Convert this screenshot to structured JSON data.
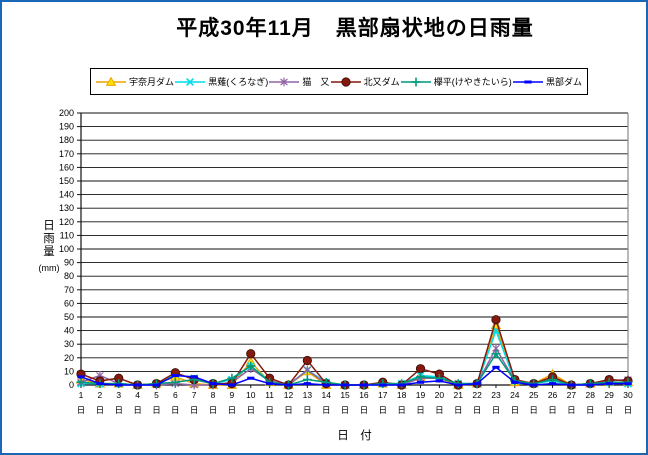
{
  "title": "平成30年11月　黒部扇状地の日雨量",
  "frame": {
    "border_color": "#1a68b5",
    "background": "#ffffff"
  },
  "chart_data": {
    "type": "line",
    "title": "平成30年11月　黒部扇状地の日雨量",
    "x": [
      1,
      2,
      3,
      4,
      5,
      6,
      7,
      8,
      9,
      10,
      11,
      12,
      13,
      14,
      15,
      16,
      17,
      18,
      19,
      20,
      21,
      22,
      23,
      24,
      25,
      26,
      27,
      28,
      29,
      30
    ],
    "x_tick_suffix": "日",
    "xlabel": "日　付",
    "ylabel": "日雨量(mm)",
    "ylabel_chars": [
      "日",
      "雨",
      "量"
    ],
    "ylabel_unit": "(mm)",
    "ylim": [
      0,
      200
    ],
    "ytick_step": 10,
    "grid": true,
    "gridline_color": "#111111",
    "right_border_color": "#888888",
    "legend_position": "top",
    "series": [
      {
        "key": "unazuki-dam",
        "name": "宇奈月ダム",
        "color": "#efa400",
        "marker_fill": "#ffe200",
        "marker": "triangle",
        "values": [
          4,
          1,
          1,
          0,
          1,
          6,
          1,
          0,
          0,
          17,
          2,
          0,
          10,
          0,
          0,
          0,
          1,
          0,
          6,
          5,
          0,
          1,
          44,
          2,
          1,
          8,
          0,
          1,
          2,
          2
        ]
      },
      {
        "key": "kuronagi",
        "name": "黒薙(くろなぎ)",
        "color": "#00dde8",
        "marker": "x",
        "values": [
          1,
          1,
          1,
          0,
          1,
          8,
          5,
          1,
          4,
          14,
          3,
          0,
          11,
          2,
          0,
          0,
          1,
          1,
          7,
          6,
          1,
          1,
          40,
          3,
          1,
          3,
          0,
          1,
          2,
          1
        ]
      },
      {
        "key": "nekomata",
        "name": "猫　又",
        "color": "#9065a5",
        "marker": "asterisk",
        "values": [
          2,
          7,
          1,
          0,
          0,
          1,
          0,
          0,
          2,
          12,
          3,
          0,
          11,
          1,
          0,
          0,
          1,
          0,
          5,
          5,
          1,
          1,
          27,
          3,
          1,
          5,
          0,
          1,
          3,
          4
        ]
      },
      {
        "key": "kitamata-dam",
        "name": "北又ダム",
        "color": "#85190d",
        "marker": "circle",
        "values": [
          8,
          3,
          5,
          0,
          1,
          9,
          4,
          1,
          1,
          23,
          5,
          0,
          18,
          1,
          0,
          0,
          2,
          0,
          12,
          8,
          0,
          1,
          48,
          4,
          1,
          6,
          0,
          1,
          4,
          3
        ]
      },
      {
        "key": "keyakidaira",
        "name": "欅平(けやきたいら)",
        "color": "#00997a",
        "marker": "plus",
        "values": [
          2,
          1,
          1,
          0,
          1,
          2,
          4,
          1,
          5,
          14,
          2,
          0,
          4,
          2,
          0,
          0,
          1,
          1,
          6,
          5,
          1,
          1,
          23,
          3,
          1,
          4,
          0,
          1,
          2,
          2
        ]
      },
      {
        "key": "kurobe-dam",
        "name": "黒部ダム",
        "color": "#0000ff",
        "marker": "dash",
        "values": [
          6,
          1,
          0,
          0,
          0,
          7,
          6,
          1,
          0,
          5,
          1,
          0,
          1,
          0,
          0,
          0,
          0,
          0,
          2,
          3,
          0,
          1,
          13,
          2,
          0,
          1,
          0,
          0,
          1,
          1
        ]
      }
    ]
  }
}
